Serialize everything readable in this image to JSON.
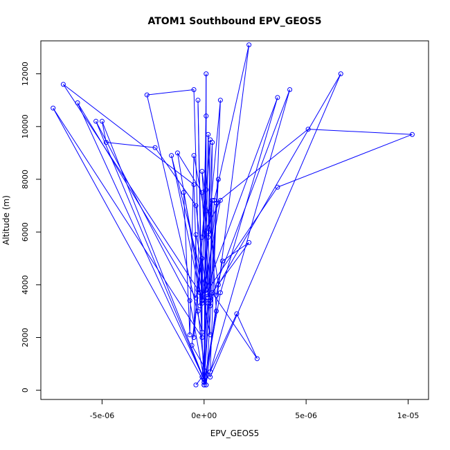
{
  "chart_data": {
    "type": "line",
    "title": "ATOM1 Southbound EPV_GEOS5",
    "xlabel": "EPV_GEOS5",
    "ylabel": "Altitude (m)",
    "xlim": [
      -8e-06,
      1.1e-05
    ],
    "ylim": [
      -350,
      13250
    ],
    "x_ticks": [
      -5e-06,
      0,
      5e-06,
      1e-05
    ],
    "x_tick_labels": [
      "-5e-06",
      "0e+00",
      "5e-06",
      "1e-05"
    ],
    "y_ticks": [
      0,
      2000,
      4000,
      6000,
      8000,
      10000,
      12000
    ],
    "y_tick_labels": [
      "0",
      "2000",
      "4000",
      "6000",
      "8000",
      "10000",
      "12000"
    ],
    "grid": false,
    "legend": "none",
    "series": [
      {
        "color": "#0000ff",
        "marker": "open-circle",
        "points": [
          [
            -4e-07,
            200
          ],
          [
            -1e-07,
            500
          ],
          [
            2e-07,
            3500
          ],
          [
            5e-07,
            7200
          ],
          [
            2.2e-06,
            13100
          ],
          [
            1e-07,
            200
          ],
          [
            -3e-07,
            3000
          ],
          [
            -5e-07,
            7800
          ],
          [
            -6.9e-06,
            11600
          ],
          [
            -2e-07,
            3700
          ],
          [
            0.0,
            200
          ],
          [
            2e-07,
            3300
          ],
          [
            1e-07,
            6800
          ],
          [
            1e-07,
            12000
          ],
          [
            0.0,
            400
          ],
          [
            -6.2e-06,
            10900
          ],
          [
            -4e-07,
            3500
          ],
          [
            -1e-07,
            5000
          ],
          [
            -1e-07,
            2200
          ],
          [
            -2.8e-06,
            11200
          ],
          [
            -5e-07,
            11400
          ],
          [
            -2e-07,
            3200
          ],
          [
            1e-07,
            3500
          ],
          [
            0.0,
            300
          ],
          [
            -7.4e-06,
            10700
          ],
          [
            -1e-07,
            2000
          ],
          [
            -3e-07,
            11000
          ],
          [
            -1e-07,
            3400
          ],
          [
            1e-07,
            10400
          ],
          [
            0.0,
            200
          ],
          [
            2e-07,
            9700
          ],
          [
            3e-07,
            6800
          ],
          [
            6e-07,
            3000
          ],
          [
            0.0,
            300
          ],
          [
            7e-07,
            8000
          ],
          [
            1e-07,
            200
          ],
          [
            -5.3e-06,
            10200
          ],
          [
            -7e-07,
            3400
          ],
          [
            0.0,
            400
          ],
          [
            -5e-06,
            10200
          ],
          [
            -4.8e-06,
            9400
          ],
          [
            -2.4e-06,
            9200
          ],
          [
            -4e-07,
            7000
          ],
          [
            1e-07,
            3800
          ],
          [
            6e-07,
            7100
          ],
          [
            5.1e-06,
            9900
          ],
          [
            1.02e-05,
            9700
          ],
          [
            3.6e-06,
            7700
          ],
          [
            1e-07,
            3700
          ],
          [
            -1.6e-06,
            8900
          ],
          [
            -1e-07,
            3300
          ],
          [
            -1.3e-06,
            9000
          ],
          [
            -1e-07,
            7500
          ],
          [
            3e-07,
            2100
          ],
          [
            -1e-06,
            7500
          ],
          [
            -7e-07,
            2100
          ],
          [
            -5e-07,
            8900
          ],
          [
            2e-07,
            6000
          ],
          [
            3e-07,
            3500
          ],
          [
            4e-07,
            7200
          ],
          [
            -1e-07,
            3400
          ],
          [
            8e-07,
            11000
          ],
          [
            3e-07,
            700
          ],
          [
            4.2e-06,
            11400
          ],
          [
            3e-07,
            3400
          ],
          [
            -4e-07,
            5900
          ],
          [
            -5e-07,
            2000
          ],
          [
            1e-07,
            7600
          ],
          [
            -3e-07,
            3800
          ],
          [
            -6e-07,
            1700
          ],
          [
            3e-07,
            500
          ],
          [
            6.7e-06,
            12000
          ],
          [
            7e-07,
            4000
          ],
          [
            -1e-07,
            8300
          ],
          [
            3e-07,
            3200
          ],
          [
            4e-07,
            9400
          ],
          [
            2e-07,
            5800
          ],
          [
            3e-07,
            9500
          ],
          [
            -1e-07,
            5800
          ],
          [
            8e-07,
            7200
          ],
          [
            -1e-07,
            3400
          ],
          [
            3.6e-06,
            11100
          ],
          [
            8e-07,
            3700
          ],
          [
            0.0,
            200
          ],
          [
            1.6e-06,
            2900
          ],
          [
            2.6e-06,
            1200
          ],
          [
            4e-07,
            3700
          ],
          [
            2.2e-06,
            5600
          ],
          [
            9e-07,
            4900
          ],
          [
            6e-07,
            3600
          ]
        ]
      }
    ]
  }
}
